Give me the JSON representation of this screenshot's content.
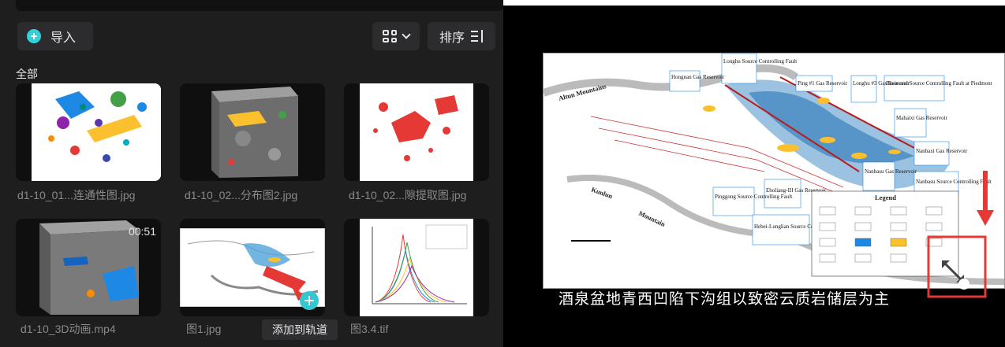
{
  "toolbar": {
    "import_label": "导入",
    "sort_label": "排序"
  },
  "section": {
    "label": "全部"
  },
  "media": [
    {
      "caption": "d1-10_01...连通性图.jpg",
      "kind": "image"
    },
    {
      "caption": "d1-10_02...分布图2.jpg",
      "kind": "image"
    },
    {
      "caption": "d1-10_02...隙提取图.jpg",
      "kind": "image"
    },
    {
      "caption": "d1-10_3D动画.mp4",
      "kind": "video",
      "duration": "00:51"
    },
    {
      "caption": "图1.jpg",
      "kind": "image"
    },
    {
      "caption": "图3.4.tif",
      "kind": "image"
    }
  ],
  "tooltip": {
    "add_to_track": "添加到轨道"
  },
  "preview": {
    "subtitle": "酒泉盆地青西凹陷下沟组以致密云质岩储层为主",
    "map_labels": {
      "mountains": "Altun Mountains",
      "longhu_fault": "Longhu Source Controlling Fault",
      "hongnan": "Hongnan Gas Reservoir",
      "ping1": "Ping #1 Gas Reservoir",
      "longhu3": "Longhu #3 Gas Reservoir",
      "basin_fault": "Basin and Source Controlling Fault at Piedmont",
      "mahai": "Mahaixi Gas Reservoir",
      "nanbei": "Nanbaxi Gas Reservoir",
      "nanbasu": "Nanbasu Source Controlling Fault",
      "pinggong_fault": "Pinggong Source Controlling Fault",
      "eboliang": "Eboliang-III Gas Reservoir",
      "nanbasu_gas": "Nanbasu Gas Reservoir",
      "luliang_fault": "Hebei-Lunglian Source Controlling Fault",
      "legend": "Legend",
      "kuerlu": "Kunlun",
      "mengba": "Mountain"
    }
  },
  "colors": {
    "panel_bg": "#1e1e1f",
    "accent": "#33d0d8",
    "highlight_red": "#e53935"
  },
  "icons": {
    "import": "plus-circle-icon",
    "view": "grid-view-icon",
    "sort": "sort-icon",
    "add": "plus-icon",
    "resize": "resize-handle-icon"
  }
}
